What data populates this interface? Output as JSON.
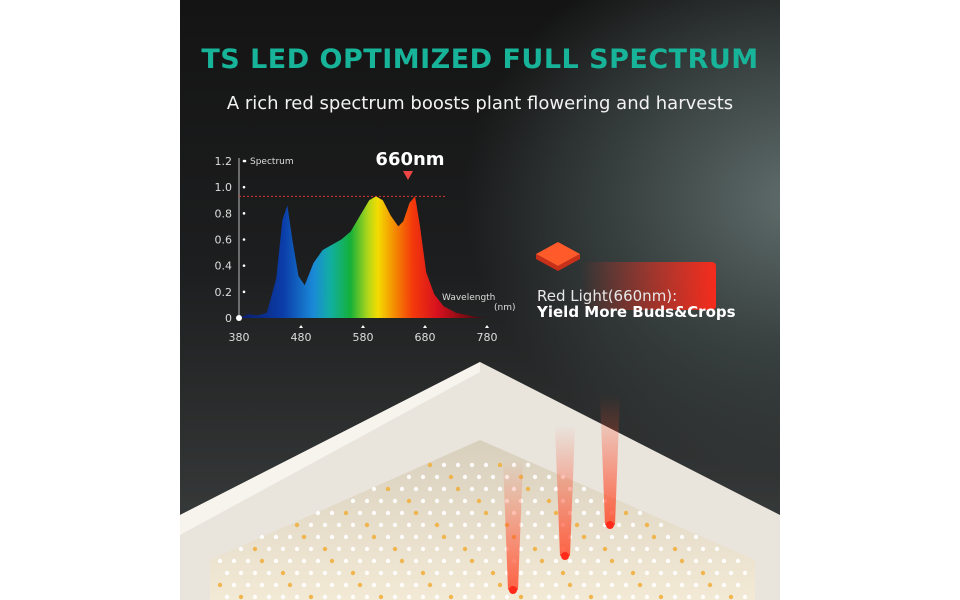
{
  "header": {
    "title": "TS LED OPTIMIZED FULL SPECTRUM",
    "subtitle": "A rich red spectrum boosts plant flowering and harvests"
  },
  "callout": {
    "line1": "Red Light(660nm):",
    "line2": "Yield More Buds&Crops",
    "color": "#ff3b1f"
  },
  "chart_data": {
    "type": "area",
    "title": "",
    "ylabel": "Spectrum",
    "xlabel": "Wavelength (nm)",
    "xlabel_lines": [
      "Wavelength",
      "(nm)"
    ],
    "annotation": "660nm",
    "xlim": [
      380,
      780
    ],
    "ylim": [
      0,
      1.2
    ],
    "xticks": [
      "380",
      "480",
      "580",
      "680",
      "780"
    ],
    "yticks": [
      "0",
      "0.2",
      "0.4",
      "0.6",
      "0.8",
      "1.0",
      "1.2"
    ],
    "reference_line_y": 0.93,
    "x": [
      380,
      395,
      410,
      425,
      440,
      450,
      458,
      466,
      476,
      486,
      500,
      515,
      530,
      545,
      560,
      575,
      590,
      601,
      612,
      625,
      637,
      645,
      655,
      664,
      672,
      682,
      695,
      710,
      730,
      760,
      780
    ],
    "values": [
      0,
      0.03,
      0.02,
      0.04,
      0.3,
      0.75,
      0.86,
      0.6,
      0.32,
      0.25,
      0.42,
      0.52,
      0.56,
      0.6,
      0.66,
      0.78,
      0.9,
      0.93,
      0.9,
      0.78,
      0.7,
      0.74,
      0.88,
      0.93,
      0.7,
      0.35,
      0.18,
      0.09,
      0.04,
      0.01,
      0
    ]
  }
}
